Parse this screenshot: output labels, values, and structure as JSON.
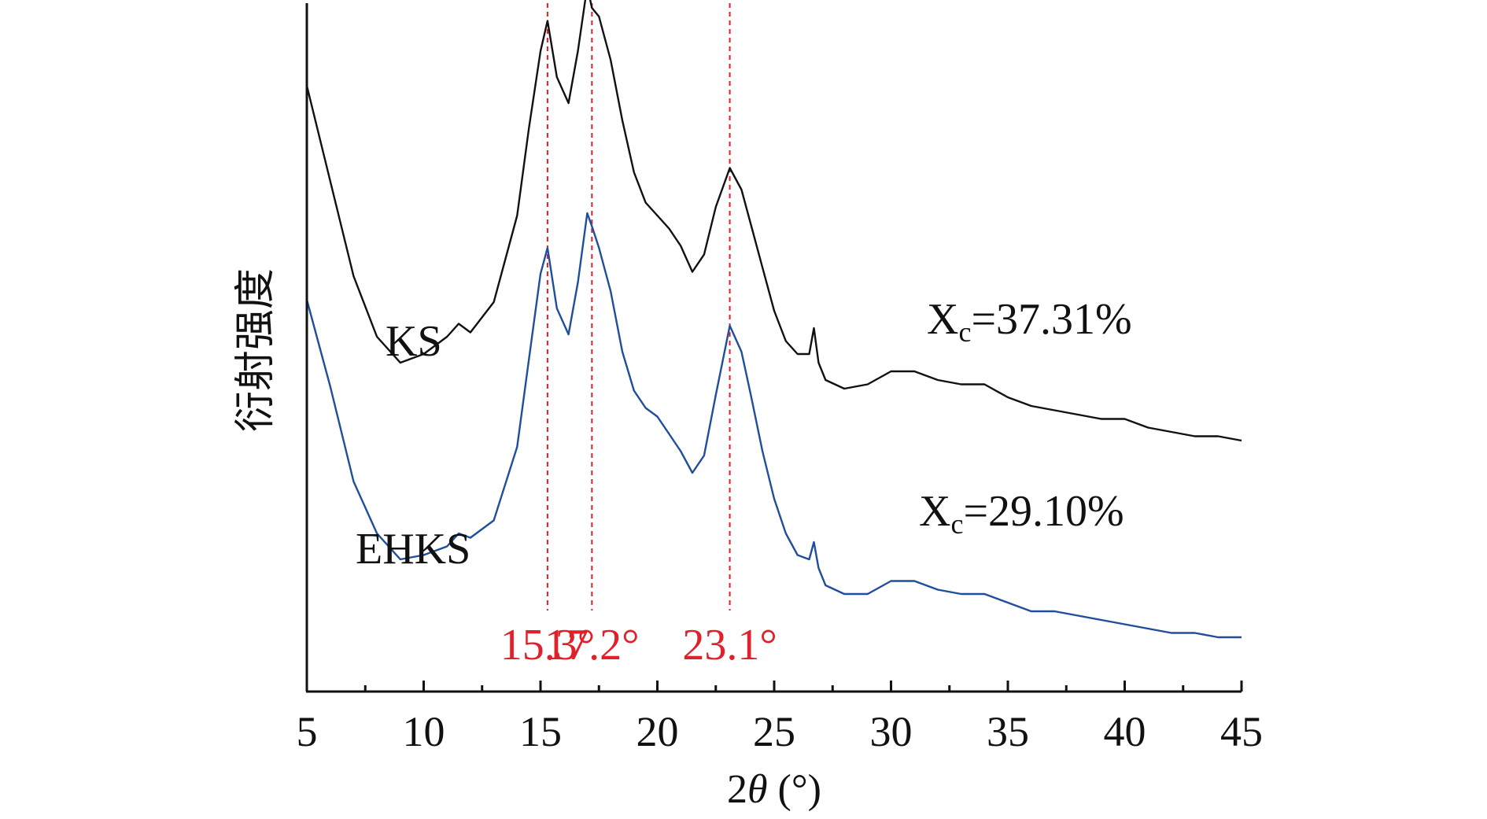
{
  "chart_data": {
    "type": "line",
    "xlabel_parts": {
      "prefix": "2",
      "symbol": "θ",
      "suffix": " (°)"
    },
    "ylabel": "衍射强度",
    "xlim": [
      5,
      45
    ],
    "xticks": [
      "5",
      "10",
      "15",
      "20",
      "25",
      "30",
      "35",
      "40",
      "45"
    ],
    "grid": false,
    "colors": {
      "peak_line": "#e0202a",
      "KS": "#111111",
      "EHKS": "#1f4e9c"
    },
    "series": [
      {
        "name": "KS",
        "color": "#111111",
        "crystallinity_prefix": "X",
        "crystallinity_sub": "c",
        "crystallinity_value": "=37.31%",
        "x": [
          5,
          6,
          7,
          8,
          9,
          10,
          11,
          11.5,
          12,
          13,
          14,
          14.5,
          15,
          15.3,
          15.7,
          16.2,
          16.6,
          17.0,
          17.2,
          17.5,
          18,
          18.5,
          19,
          19.5,
          20,
          20.5,
          21,
          21.5,
          22,
          22.5,
          23.1,
          23.6,
          24,
          24.5,
          25,
          25.5,
          26,
          26.5,
          26.7,
          26.9,
          27.2,
          28,
          29,
          30,
          31,
          32,
          33,
          34,
          35,
          36,
          37,
          38,
          39,
          40,
          41,
          42,
          43,
          44,
          45
        ],
        "y": [
          82,
          60,
          38,
          24,
          18,
          20,
          24,
          27,
          25,
          32,
          52,
          72,
          90,
          97,
          84,
          78,
          90,
          105,
          100,
          98,
          88,
          74,
          62,
          55,
          52,
          49,
          45,
          39,
          43,
          54,
          63,
          58,
          50,
          40,
          30,
          23,
          20,
          20,
          26,
          18,
          14,
          12,
          13,
          16,
          16,
          14,
          13,
          13,
          10,
          8,
          7,
          6,
          5,
          5,
          3,
          2,
          1,
          1,
          0
        ]
      },
      {
        "name": "EHKS",
        "color": "#1f4e9c",
        "crystallinity_prefix": "X",
        "crystallinity_sub": "c",
        "crystallinity_value": "=29.10%",
        "x": [
          5,
          6,
          7,
          8,
          9,
          10,
          11,
          11.5,
          12,
          13,
          14,
          14.5,
          15,
          15.3,
          15.7,
          16.2,
          16.6,
          17.0,
          17.2,
          17.5,
          18,
          18.5,
          19,
          19.5,
          20,
          20.5,
          21,
          21.5,
          22,
          22.5,
          23.1,
          23.6,
          24,
          24.5,
          25,
          25.5,
          26,
          26.5,
          26.7,
          26.9,
          27.2,
          28,
          29,
          30,
          31,
          32,
          33,
          34,
          35,
          36,
          37,
          38,
          39,
          40,
          41,
          42,
          43,
          44,
          45
        ],
        "y": [
          78,
          58,
          36,
          24,
          18,
          19,
          21,
          24,
          23,
          27,
          44,
          64,
          84,
          90,
          76,
          70,
          82,
          98,
          95,
          90,
          80,
          66,
          57,
          53,
          51,
          47,
          43,
          38,
          42,
          56,
          72,
          66,
          56,
          43,
          32,
          24,
          19,
          18,
          22,
          16,
          12,
          10,
          10,
          13,
          13,
          11,
          10,
          10,
          8,
          6,
          6,
          5,
          4,
          3,
          2,
          1,
          1,
          0,
          0
        ]
      }
    ],
    "peak_markers": [
      {
        "x": 15.3,
        "label": "15.3°"
      },
      {
        "x": 17.2,
        "label": "17.2°"
      },
      {
        "x": 23.1,
        "label": "23.1°"
      }
    ]
  }
}
